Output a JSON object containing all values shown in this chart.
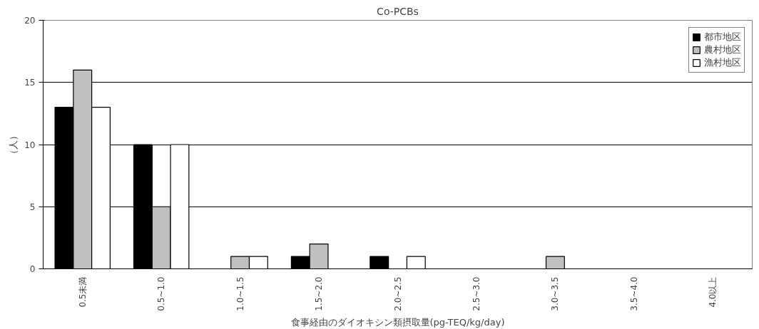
{
  "chart_data": {
    "type": "bar",
    "title": "Co-PCBs",
    "xlabel": "食事経由のダイオキシン類摂取量(pg-TEQ/kg/day)",
    "ylabel": "（人）",
    "categories": [
      "0.5未満",
      "0.5~1.0",
      "1.0~1.5",
      "1.5~2.0",
      "2.0~2.5",
      "2.5~3.0",
      "3.0~3.5",
      "3.5~4.0",
      "4.0以上"
    ],
    "series": [
      {
        "name": "都市地区",
        "color": "#000000",
        "values": [
          13,
          10,
          0,
          1,
          1,
          0,
          0,
          0,
          0
        ]
      },
      {
        "name": "農村地区",
        "color": "#c0c0c0",
        "values": [
          16,
          5,
          1,
          2,
          0,
          0,
          1,
          0,
          0
        ]
      },
      {
        "name": "漁村地区",
        "color": "#ffffff",
        "values": [
          13,
          10,
          1,
          0,
          1,
          0,
          0,
          0,
          0
        ]
      }
    ],
    "ylim": [
      0,
      20
    ],
    "yticks": [
      0,
      5,
      10,
      15,
      20
    ],
    "grid": "y",
    "legend": "top right"
  }
}
